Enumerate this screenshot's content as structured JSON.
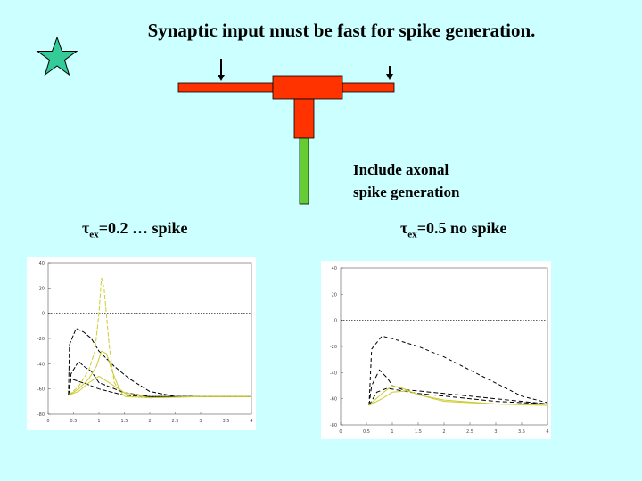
{
  "title": "Synaptic input must be fast for spike generation.",
  "star_color": "#33cc99",
  "diagram": {
    "dendrite_color": "#ff3300",
    "axon_color": "#66cc33",
    "arrow_color": "#000000"
  },
  "axon_note": {
    "line1": "Include axonal",
    "line2": "spike generation"
  },
  "left_label": {
    "tau": "τ",
    "sub": "ex",
    "rest": "=0.2 … spike"
  },
  "right_label": {
    "tau": "τ",
    "sub": "ex",
    "rest": "=0.5   no spike"
  },
  "chart_data": [
    {
      "type": "line",
      "title": "",
      "x_ticks": [
        "0",
        "0.5",
        "1",
        "1.5",
        "2",
        "2.5",
        "3",
        "3.5",
        "4"
      ],
      "y_ticks": [
        "40",
        "20",
        "0",
        "-20",
        "-40",
        "-60",
        "-80"
      ],
      "xlim": [
        0,
        4
      ],
      "ylim": [
        -80,
        40
      ],
      "reference_line_y": 0,
      "series": [
        {
          "name": "black-dashed-1",
          "color": "#000000",
          "dash": "5,2",
          "x": [
            0.4,
            0.42,
            0.55,
            0.7,
            0.85,
            1.0,
            1.3,
            1.6,
            2.0,
            2.5,
            3.0,
            3.5,
            4.0
          ],
          "y": [
            -65,
            -25,
            -12,
            -15,
            -20,
            -30,
            -42,
            -52,
            -62,
            -66,
            -66,
            -66,
            -66
          ]
        },
        {
          "name": "black-dashed-2",
          "color": "#000000",
          "dash": "5,2",
          "x": [
            0.4,
            0.45,
            0.6,
            0.7,
            0.85,
            1.0,
            1.5,
            2.0,
            3.0,
            4.0
          ],
          "y": [
            -65,
            -48,
            -38,
            -42,
            -46,
            -55,
            -63,
            -66,
            -66,
            -66
          ]
        },
        {
          "name": "black-dashed-3",
          "color": "#000000",
          "dash": "5,2",
          "x": [
            0.4,
            0.45,
            0.6,
            0.75,
            1.0,
            1.5,
            2.0,
            3.0,
            4.0
          ],
          "y": [
            -65,
            -52,
            -54,
            -56,
            -60,
            -65,
            -66,
            -66,
            -66
          ]
        },
        {
          "name": "yellow-spike",
          "color": "#cccc33",
          "dash": "5,2",
          "x": [
            0.4,
            0.6,
            0.8,
            0.92,
            1.0,
            1.05,
            1.1,
            1.2,
            1.3,
            1.5,
            2.0,
            3.0,
            4.0
          ],
          "y": [
            -65,
            -58,
            -45,
            -30,
            0,
            28,
            20,
            -25,
            -55,
            -66,
            -67,
            -66,
            -66
          ]
        },
        {
          "name": "yellow-2",
          "color": "#cccc33",
          "dash": "",
          "x": [
            0.4,
            0.6,
            0.8,
            0.95,
            1.05,
            1.15,
            1.25,
            1.4,
            1.6,
            2.0,
            3.0,
            4.0
          ],
          "y": [
            -65,
            -60,
            -52,
            -42,
            -30,
            -32,
            -45,
            -60,
            -66,
            -67,
            -66,
            -66
          ]
        },
        {
          "name": "yellow-3",
          "color": "#cccc33",
          "dash": "",
          "x": [
            0.4,
            0.6,
            0.8,
            1.0,
            1.2,
            1.5,
            2.0,
            3.0,
            4.0
          ],
          "y": [
            -65,
            -62,
            -55,
            -50,
            -55,
            -63,
            -67,
            -66,
            -66
          ]
        }
      ]
    },
    {
      "type": "line",
      "title": "",
      "x_ticks": [
        "0",
        "0.5",
        "1",
        "1.5",
        "2",
        "2.5",
        "3",
        "3.5",
        "4"
      ],
      "y_ticks": [
        "40",
        "20",
        "0",
        "-20",
        "-40",
        "-60",
        "-80"
      ],
      "xlim": [
        0,
        4
      ],
      "ylim": [
        -80,
        40
      ],
      "reference_line_y": 0,
      "series": [
        {
          "name": "black-dashed-slow",
          "color": "#000000",
          "dash": "4,3",
          "x": [
            0.55,
            0.6,
            0.8,
            1.0,
            1.5,
            2.0,
            2.5,
            3.0,
            3.5,
            4.0
          ],
          "y": [
            -65,
            -22,
            -12,
            -14,
            -20,
            -28,
            -38,
            -48,
            -58,
            -63
          ]
        },
        {
          "name": "black-dashed-mid",
          "color": "#000000",
          "dash": "5,3",
          "x": [
            0.55,
            0.6,
            0.75,
            0.9,
            1.0,
            1.2,
            1.5,
            2.0,
            3.0,
            4.0
          ],
          "y": [
            -65,
            -50,
            -38,
            -44,
            -50,
            -53,
            -54,
            -56,
            -60,
            -64
          ]
        },
        {
          "name": "black-dashed-low",
          "color": "#000000",
          "dash": "5,3",
          "x": [
            0.55,
            0.7,
            0.9,
            1.2,
            1.5,
            2.0,
            3.0,
            4.0
          ],
          "y": [
            -65,
            -55,
            -52,
            -54,
            -56,
            -58,
            -62,
            -64
          ]
        },
        {
          "name": "yellow-1",
          "color": "#cccc33",
          "dash": "",
          "x": [
            0.55,
            0.8,
            1.0,
            1.2,
            1.5,
            2.0,
            3.0,
            4.0
          ],
          "y": [
            -65,
            -56,
            -50,
            -52,
            -57,
            -61,
            -64,
            -65
          ]
        },
        {
          "name": "yellow-2",
          "color": "#cccc33",
          "dash": "",
          "x": [
            0.55,
            0.8,
            1.0,
            1.3,
            1.6,
            2.0,
            3.0,
            4.0
          ],
          "y": [
            -65,
            -60,
            -55,
            -54,
            -58,
            -62,
            -64,
            -65
          ]
        }
      ]
    }
  ]
}
